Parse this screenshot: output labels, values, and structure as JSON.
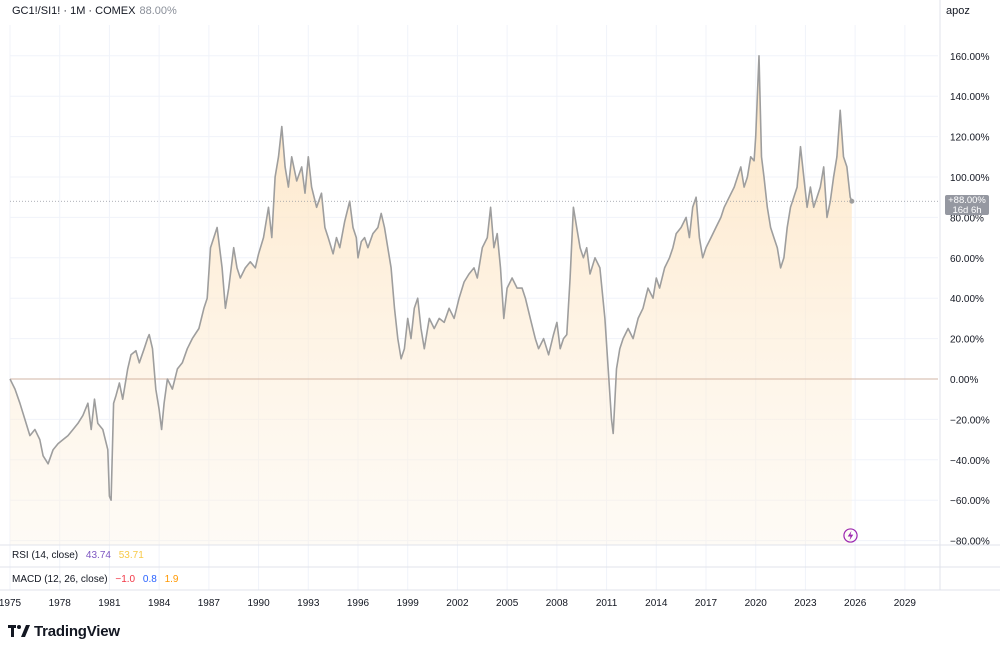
{
  "header": {
    "symbol": "GC1!/SI1! · 1M · COMEX",
    "last_value": "88.00%",
    "user": "apoz"
  },
  "price_badge": {
    "value": "+88.00%",
    "countdown": "16d 6h"
  },
  "indicators": {
    "rsi": {
      "label": "RSI (14, close)",
      "value1": "43.74",
      "value2": "53.71",
      "color1": "#7e57c2",
      "color2": "#f7c948"
    },
    "macd": {
      "label": "MACD (12, 26, close)",
      "value1": "−1.0",
      "value2": "0.8",
      "value3": "1.9",
      "color1": "#f23645",
      "color2": "#2962ff",
      "color3": "#ff9800"
    }
  },
  "brand": {
    "name": "TradingView"
  },
  "icons": {
    "logo": "tradingview-logo-icon",
    "bolt": "lightning-bolt-icon"
  },
  "colors": {
    "line": "#9e9e9e",
    "area": "#fde9cc",
    "zero_line": "#c8a08a",
    "badge": "#9598a1"
  },
  "chart_data": {
    "type": "area",
    "title": "GC1!/SI1! · 1M · COMEX",
    "xlabel": "",
    "ylabel": "",
    "xlim": [
      1975,
      2031
    ],
    "ylim": [
      -82,
      175
    ],
    "x_ticks": [
      "1975",
      "1978",
      "1981",
      "1984",
      "1987",
      "1990",
      "1993",
      "1996",
      "1999",
      "2002",
      "2005",
      "2008",
      "2011",
      "2014",
      "2017",
      "2020",
      "2023",
      "2026",
      "2029"
    ],
    "y_ticks": [
      {
        "v": 160,
        "label": "160.00%"
      },
      {
        "v": 140,
        "label": "140.00%"
      },
      {
        "v": 120,
        "label": "120.00%"
      },
      {
        "v": 100,
        "label": "100.00%"
      },
      {
        "v": 80,
        "label": "80.00%"
      },
      {
        "v": 60,
        "label": "60.00%"
      },
      {
        "v": 40,
        "label": "40.00%"
      },
      {
        "v": 20,
        "label": "20.00%"
      },
      {
        "v": 0,
        "label": "0.00%"
      },
      {
        "v": -20,
        "label": "−20.00%"
      },
      {
        "v": -40,
        "label": "−40.00%"
      },
      {
        "v": -60,
        "label": "−60.00%"
      },
      {
        "v": -80,
        "label": "−80.00%"
      }
    ],
    "grid": true,
    "series": [
      {
        "values": [
          [
            1975.0,
            0
          ],
          [
            1975.3,
            -5
          ],
          [
            1975.6,
            -12
          ],
          [
            1975.9,
            -20
          ],
          [
            1976.2,
            -28
          ],
          [
            1976.5,
            -25
          ],
          [
            1976.8,
            -30
          ],
          [
            1977.0,
            -38
          ],
          [
            1977.3,
            -42
          ],
          [
            1977.6,
            -35
          ],
          [
            1977.9,
            -32
          ],
          [
            1978.2,
            -30
          ],
          [
            1978.5,
            -28
          ],
          [
            1978.8,
            -25
          ],
          [
            1979.1,
            -22
          ],
          [
            1979.4,
            -18
          ],
          [
            1979.7,
            -12
          ],
          [
            1979.9,
            -25
          ],
          [
            1980.1,
            -10
          ],
          [
            1980.3,
            -22
          ],
          [
            1980.6,
            -25
          ],
          [
            1980.9,
            -35
          ],
          [
            1981.0,
            -58
          ],
          [
            1981.1,
            -60
          ],
          [
            1981.25,
            -12
          ],
          [
            1981.4,
            -8
          ],
          [
            1981.6,
            -2
          ],
          [
            1981.8,
            -10
          ],
          [
            1982.1,
            5
          ],
          [
            1982.3,
            12
          ],
          [
            1982.6,
            14
          ],
          [
            1982.8,
            8
          ],
          [
            1983.1,
            15
          ],
          [
            1983.3,
            20
          ],
          [
            1983.4,
            22
          ],
          [
            1983.6,
            15
          ],
          [
            1983.8,
            -5
          ],
          [
            1984.0,
            -15
          ],
          [
            1984.15,
            -25
          ],
          [
            1984.3,
            -12
          ],
          [
            1984.5,
            0
          ],
          [
            1984.8,
            -5
          ],
          [
            1985.1,
            5
          ],
          [
            1985.4,
            8
          ],
          [
            1985.7,
            15
          ],
          [
            1986.0,
            20
          ],
          [
            1986.4,
            25
          ],
          [
            1986.7,
            35
          ],
          [
            1986.9,
            40
          ],
          [
            1987.1,
            65
          ],
          [
            1987.3,
            70
          ],
          [
            1987.5,
            75
          ],
          [
            1987.8,
            55
          ],
          [
            1988.0,
            35
          ],
          [
            1988.2,
            45
          ],
          [
            1988.5,
            65
          ],
          [
            1988.7,
            55
          ],
          [
            1988.9,
            50
          ],
          [
            1989.2,
            55
          ],
          [
            1989.5,
            58
          ],
          [
            1989.8,
            55
          ],
          [
            1990.0,
            62
          ],
          [
            1990.3,
            70
          ],
          [
            1990.6,
            85
          ],
          [
            1990.8,
            70
          ],
          [
            1991.0,
            100
          ],
          [
            1991.2,
            110
          ],
          [
            1991.4,
            125
          ],
          [
            1991.6,
            105
          ],
          [
            1991.8,
            95
          ],
          [
            1992.0,
            110
          ],
          [
            1992.3,
            98
          ],
          [
            1992.6,
            105
          ],
          [
            1992.8,
            92
          ],
          [
            1993.0,
            110
          ],
          [
            1993.2,
            95
          ],
          [
            1993.5,
            85
          ],
          [
            1993.8,
            92
          ],
          [
            1994.0,
            75
          ],
          [
            1994.2,
            70
          ],
          [
            1994.5,
            62
          ],
          [
            1994.7,
            70
          ],
          [
            1994.9,
            65
          ],
          [
            1995.2,
            78
          ],
          [
            1995.5,
            88
          ],
          [
            1995.7,
            75
          ],
          [
            1995.9,
            70
          ],
          [
            1996.0,
            60
          ],
          [
            1996.2,
            68
          ],
          [
            1996.4,
            70
          ],
          [
            1996.6,
            65
          ],
          [
            1996.9,
            72
          ],
          [
            1997.2,
            75
          ],
          [
            1997.4,
            82
          ],
          [
            1997.6,
            75
          ],
          [
            1997.8,
            65
          ],
          [
            1998.0,
            55
          ],
          [
            1998.2,
            35
          ],
          [
            1998.4,
            20
          ],
          [
            1998.6,
            10
          ],
          [
            1998.8,
            15
          ],
          [
            1999.0,
            30
          ],
          [
            1999.2,
            20
          ],
          [
            1999.4,
            35
          ],
          [
            1999.6,
            40
          ],
          [
            1999.8,
            25
          ],
          [
            2000.0,
            15
          ],
          [
            2000.3,
            30
          ],
          [
            2000.6,
            25
          ],
          [
            2000.9,
            30
          ],
          [
            2001.2,
            28
          ],
          [
            2001.5,
            35
          ],
          [
            2001.8,
            30
          ],
          [
            2002.1,
            40
          ],
          [
            2002.4,
            48
          ],
          [
            2002.7,
            52
          ],
          [
            2003.0,
            55
          ],
          [
            2003.2,
            50
          ],
          [
            2003.5,
            65
          ],
          [
            2003.8,
            70
          ],
          [
            2004.0,
            85
          ],
          [
            2004.2,
            65
          ],
          [
            2004.4,
            72
          ],
          [
            2004.6,
            55
          ],
          [
            2004.8,
            30
          ],
          [
            2005.0,
            45
          ],
          [
            2005.3,
            50
          ],
          [
            2005.6,
            45
          ],
          [
            2005.9,
            45
          ],
          [
            2006.1,
            40
          ],
          [
            2006.4,
            30
          ],
          [
            2006.7,
            20
          ],
          [
            2006.9,
            15
          ],
          [
            2007.2,
            20
          ],
          [
            2007.5,
            12
          ],
          [
            2007.8,
            22
          ],
          [
            2008.0,
            28
          ],
          [
            2008.2,
            15
          ],
          [
            2008.4,
            20
          ],
          [
            2008.6,
            22
          ],
          [
            2008.8,
            50
          ],
          [
            2009.0,
            85
          ],
          [
            2009.2,
            75
          ],
          [
            2009.4,
            65
          ],
          [
            2009.6,
            60
          ],
          [
            2009.8,
            65
          ],
          [
            2010.0,
            52
          ],
          [
            2010.3,
            60
          ],
          [
            2010.6,
            55
          ],
          [
            2010.9,
            30
          ],
          [
            2011.1,
            5
          ],
          [
            2011.3,
            -20
          ],
          [
            2011.4,
            -27
          ],
          [
            2011.6,
            5
          ],
          [
            2011.8,
            15
          ],
          [
            2012.0,
            20
          ],
          [
            2012.3,
            25
          ],
          [
            2012.6,
            20
          ],
          [
            2012.9,
            30
          ],
          [
            2013.2,
            35
          ],
          [
            2013.5,
            45
          ],
          [
            2013.8,
            40
          ],
          [
            2014.0,
            50
          ],
          [
            2014.2,
            45
          ],
          [
            2014.5,
            55
          ],
          [
            2014.8,
            60
          ],
          [
            2015.0,
            65
          ],
          [
            2015.2,
            72
          ],
          [
            2015.5,
            75
          ],
          [
            2015.8,
            80
          ],
          [
            2016.0,
            70
          ],
          [
            2016.2,
            85
          ],
          [
            2016.4,
            90
          ],
          [
            2016.6,
            70
          ],
          [
            2016.8,
            60
          ],
          [
            2017.0,
            65
          ],
          [
            2017.3,
            70
          ],
          [
            2017.6,
            75
          ],
          [
            2017.9,
            80
          ],
          [
            2018.1,
            85
          ],
          [
            2018.4,
            90
          ],
          [
            2018.7,
            95
          ],
          [
            2018.9,
            100
          ],
          [
            2019.1,
            105
          ],
          [
            2019.3,
            95
          ],
          [
            2019.5,
            100
          ],
          [
            2019.7,
            110
          ],
          [
            2019.9,
            108
          ],
          [
            2020.0,
            120
          ],
          [
            2020.2,
            160
          ],
          [
            2020.35,
            110
          ],
          [
            2020.5,
            100
          ],
          [
            2020.7,
            85
          ],
          [
            2020.9,
            75
          ],
          [
            2021.1,
            70
          ],
          [
            2021.3,
            65
          ],
          [
            2021.5,
            55
          ],
          [
            2021.7,
            60
          ],
          [
            2021.9,
            75
          ],
          [
            2022.1,
            85
          ],
          [
            2022.3,
            90
          ],
          [
            2022.5,
            95
          ],
          [
            2022.7,
            115
          ],
          [
            2022.9,
            100
          ],
          [
            2023.1,
            85
          ],
          [
            2023.3,
            95
          ],
          [
            2023.5,
            85
          ],
          [
            2023.7,
            90
          ],
          [
            2023.9,
            95
          ],
          [
            2024.1,
            105
          ],
          [
            2024.3,
            80
          ],
          [
            2024.5,
            88
          ],
          [
            2024.7,
            100
          ],
          [
            2024.9,
            110
          ],
          [
            2025.1,
            133
          ],
          [
            2025.3,
            110
          ],
          [
            2025.5,
            105
          ],
          [
            2025.7,
            90
          ],
          [
            2025.8,
            88
          ]
        ]
      }
    ]
  }
}
